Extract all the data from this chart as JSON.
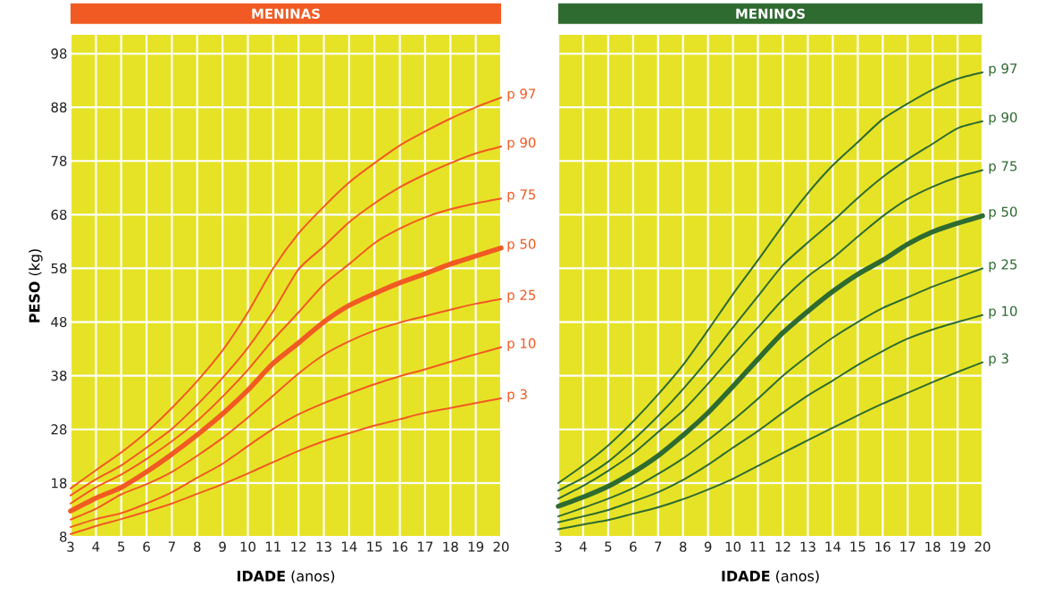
{
  "chart_data": [
    {
      "type": "line",
      "title": "MENINAS",
      "xlabel": "**IDADE** (anos)",
      "ylabel": "**PESO** (kg)",
      "x": [
        3,
        4,
        5,
        6,
        7,
        8,
        9,
        10,
        11,
        12,
        13,
        14,
        15,
        16,
        17,
        18,
        19,
        20
      ],
      "xlim": [
        3,
        20
      ],
      "xticks": [
        3,
        4,
        5,
        6,
        7,
        8,
        9,
        10,
        11,
        12,
        13,
        14,
        15,
        16,
        17,
        18,
        19,
        20
      ],
      "ylim": [
        8,
        101.5
      ],
      "yticks": [
        8,
        18,
        28,
        38,
        48,
        58,
        68,
        78,
        88,
        98
      ],
      "grid": true,
      "legend": false,
      "marker": "none",
      "line_style": "solid",
      "series": [
        {
          "name": "p 97",
          "color": "#f15a22",
          "values": [
            17,
            20.4,
            23.7,
            27.5,
            32,
            37,
            42.7,
            49.8,
            58,
            64.5,
            69.5,
            74,
            77.6,
            80.9,
            83.5,
            85.9,
            88,
            89.8
          ]
        },
        {
          "name": "p 90",
          "color": "#f15a22",
          "values": [
            15.7,
            18.7,
            21.3,
            24.6,
            28.1,
            32.6,
            37.6,
            43.2,
            50,
            57.8,
            62.1,
            66.6,
            70.1,
            73.1,
            75.5,
            77.6,
            79.4,
            80.7
          ]
        },
        {
          "name": "p 75",
          "color": "#f15a22",
          "values": [
            14.2,
            17.2,
            19.6,
            22.5,
            25.8,
            29.6,
            34.1,
            39.1,
            44.7,
            49.8,
            55,
            58.8,
            62.7,
            65.4,
            67.5,
            69,
            70.1,
            71
          ]
        },
        {
          "name": "p 50",
          "color": "#f15a22",
          "values": [
            12.8,
            15.2,
            17.2,
            20.1,
            23.4,
            27,
            30.9,
            35.3,
            40.3,
            44.1,
            48,
            51.1,
            53.3,
            55.3,
            57,
            58.8,
            60.3,
            61.8
          ]
        },
        {
          "name": "p 25",
          "color": "#f15a22",
          "values": [
            11.2,
            13.2,
            15.9,
            17.8,
            20.1,
            23.1,
            26.4,
            30.2,
            34.3,
            38.4,
            41.9,
            44.4,
            46.4,
            47.9,
            49.1,
            50.3,
            51.4,
            52.3
          ]
        },
        {
          "name": "p 10",
          "color": "#f15a22",
          "values": [
            9.8,
            11.3,
            12.4,
            14.2,
            16.3,
            19,
            21.6,
            24.9,
            28.1,
            30.8,
            32.9,
            34.7,
            36.4,
            37.9,
            39.2,
            40.6,
            42,
            43.3
          ]
        },
        {
          "name": "p 3",
          "color": "#f15a22",
          "values": [
            8.5,
            10,
            11.3,
            12.7,
            14.2,
            16,
            17.8,
            19.8,
            21.9,
            24,
            25.8,
            27.3,
            28.7,
            29.9,
            31.1,
            32,
            32.9,
            33.8
          ]
        }
      ]
    },
    {
      "type": "line",
      "title": "MENINOS",
      "xlabel": "**IDADE** (anos)",
      "x": [
        3,
        4,
        5,
        6,
        7,
        8,
        9,
        10,
        11,
        12,
        13,
        14,
        15,
        16,
        17,
        18,
        19,
        20
      ],
      "xlim": [
        3,
        20
      ],
      "xticks": [
        3,
        4,
        5,
        6,
        7,
        8,
        9,
        10,
        11,
        12,
        13,
        14,
        15,
        16,
        17,
        18,
        19,
        20
      ],
      "ylim": [
        8,
        101.5
      ],
      "yticks": [
        8,
        18,
        28,
        38,
        48,
        58,
        68,
        78,
        88,
        98
      ],
      "tick_labels": "x",
      "grid": true,
      "legend": false,
      "marker": "none",
      "line_style": "solid",
      "series": [
        {
          "name": "p 97",
          "color": "#2e6b30",
          "values": [
            18,
            21.3,
            25,
            29.5,
            34.5,
            40,
            46.5,
            53.2,
            59.5,
            66,
            72,
            77.2,
            81.5,
            85.8,
            88.7,
            91.3,
            93.3,
            94.5
          ]
        },
        {
          "name": "p 90",
          "color": "#2e6b30",
          "values": [
            16.6,
            19,
            22,
            26,
            30.5,
            35.5,
            41,
            47,
            52.8,
            58.6,
            62.8,
            66.8,
            71.1,
            75,
            78.3,
            81.2,
            84.1,
            85.4
          ]
        },
        {
          "name": "p 75",
          "color": "#2e6b30",
          "values": [
            15.1,
            17.5,
            20.3,
            23.5,
            27.5,
            31.5,
            36.5,
            41.8,
            47,
            52.2,
            56.5,
            59.9,
            63.9,
            67.7,
            70.9,
            73.2,
            75,
            76.3
          ]
        },
        {
          "name": "p 50",
          "color": "#2e6b30",
          "values": [
            13.7,
            15.4,
            17.4,
            20,
            23.1,
            26.9,
            31.1,
            36,
            41.1,
            46,
            50,
            53.7,
            56.9,
            59.5,
            62.5,
            64.8,
            66.4,
            67.8
          ]
        },
        {
          "name": "p 25",
          "color": "#2e6b30",
          "values": [
            11.8,
            13.4,
            15.1,
            17.1,
            19.7,
            22.6,
            26,
            29.7,
            33.7,
            38,
            41.7,
            45.1,
            48,
            50.6,
            52.6,
            54.6,
            56.3,
            58
          ]
        },
        {
          "name": "p 10",
          "color": "#2e6b30",
          "values": [
            10.7,
            11.8,
            13,
            14.6,
            16.3,
            18.6,
            21.4,
            24.6,
            27.7,
            31.1,
            34.3,
            37.1,
            40,
            42.6,
            44.9,
            46.6,
            48,
            49.3
          ]
        },
        {
          "name": "p 3",
          "color": "#2e6b30",
          "values": [
            9.4,
            10.3,
            11.1,
            12.3,
            13.5,
            15,
            16.8,
            18.8,
            21.2,
            23.6,
            26,
            28.3,
            30.6,
            32.8,
            34.8,
            36.8,
            38.7,
            40.5
          ]
        }
      ]
    }
  ]
}
